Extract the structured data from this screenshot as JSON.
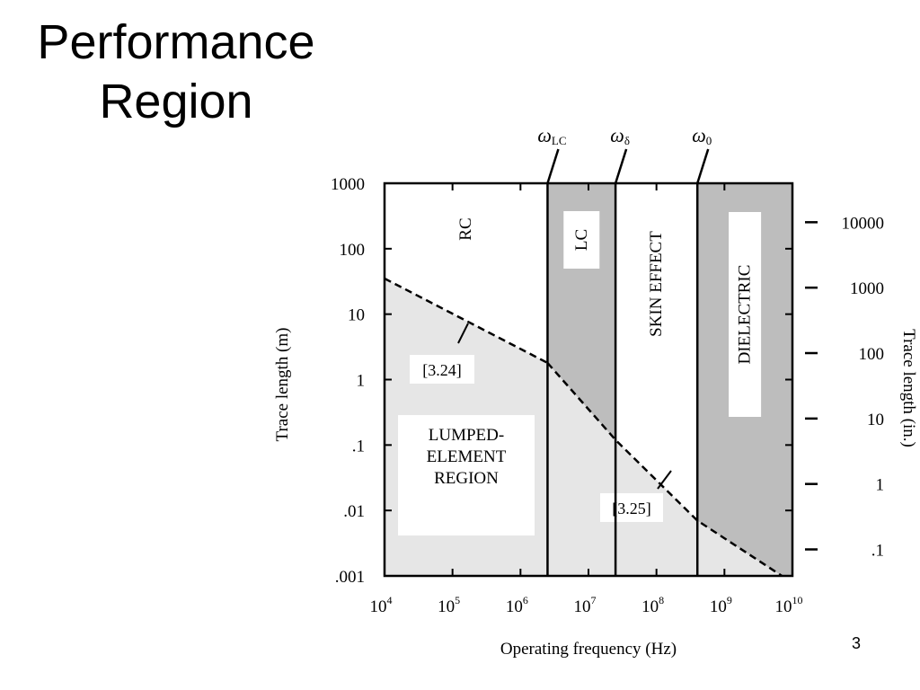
{
  "slide": {
    "title_line1": "Performance",
    "title_line2": "Region",
    "page_number": "3"
  },
  "chart_data": {
    "type": "area",
    "xlabel": "Operating frequency (Hz)",
    "ylabel": "Trace length (m)",
    "ylabel_right": "Trace length (in.)",
    "x_scale": "log",
    "y_scale": "log",
    "xlim": [
      10000,
      10000000000
    ],
    "ylim": [
      0.001,
      1000
    ],
    "y2lim": [
      0.03937,
      39370
    ],
    "x_ticks": [
      {
        "value": 10000,
        "base": "10",
        "exp": "4"
      },
      {
        "value": 100000,
        "base": "10",
        "exp": "5"
      },
      {
        "value": 1000000,
        "base": "10",
        "exp": "6"
      },
      {
        "value": 10000000,
        "base": "10",
        "exp": "7"
      },
      {
        "value": 100000000,
        "base": "10",
        "exp": "8"
      },
      {
        "value": 1000000000,
        "base": "10",
        "exp": "9"
      },
      {
        "value": 10000000000,
        "base": "10",
        "exp": "10"
      }
    ],
    "y_ticks": [
      {
        "value": 1000,
        "label": "1000"
      },
      {
        "value": 100,
        "label": "100"
      },
      {
        "value": 10,
        "label": "10"
      },
      {
        "value": 1,
        "label": "1"
      },
      {
        "value": 0.1,
        "label": ".1"
      },
      {
        "value": 0.01,
        "label": ".01"
      },
      {
        "value": 0.001,
        "label": ".001"
      }
    ],
    "y2_ticks": [
      {
        "value": 10000,
        "label": "10000"
      },
      {
        "value": 1000,
        "label": "1000"
      },
      {
        "value": 100,
        "label": "100"
      },
      {
        "value": 10,
        "label": "10"
      },
      {
        "value": 1,
        "label": "1"
      },
      {
        "value": 0.1,
        "label": ".1"
      }
    ],
    "boundaries": [
      {
        "symbol": "ω",
        "sub": "LC",
        "value": 2500000
      },
      {
        "symbol": "ω",
        "sub": "δ",
        "value": 25000000
      },
      {
        "symbol": "ω",
        "sub": "0",
        "value": 400000000
      }
    ],
    "regions": [
      {
        "label": "RC",
        "from": 10000,
        "to": 2500000,
        "shaded": false
      },
      {
        "label": "LC",
        "from": 2500000,
        "to": 25000000,
        "shaded": true
      },
      {
        "label": "SKIN EFFECT",
        "from": 25000000,
        "to": 400000000,
        "shaded": false
      },
      {
        "label": "DIELECTRIC",
        "from": 400000000,
        "to": 10000000000,
        "shaded": true
      }
    ],
    "lumped_region": {
      "label_lines": [
        "LUMPED-",
        "ELEMENT",
        "REGION"
      ]
    },
    "curves": [
      {
        "label": "[3.24]",
        "points": [
          [
            10000,
            35
          ],
          [
            2500000,
            1.8
          ]
        ]
      },
      {
        "label": "[3.25]",
        "points": [
          [
            2500000,
            1.8
          ],
          [
            25000000,
            0.12
          ],
          [
            400000000,
            0.007
          ],
          [
            7000000000,
            0.001
          ]
        ]
      }
    ]
  },
  "colors": {
    "shade": "#bdbdbd",
    "lumped": "#e6e6e6",
    "line": "#000000",
    "background": "#ffffff"
  }
}
